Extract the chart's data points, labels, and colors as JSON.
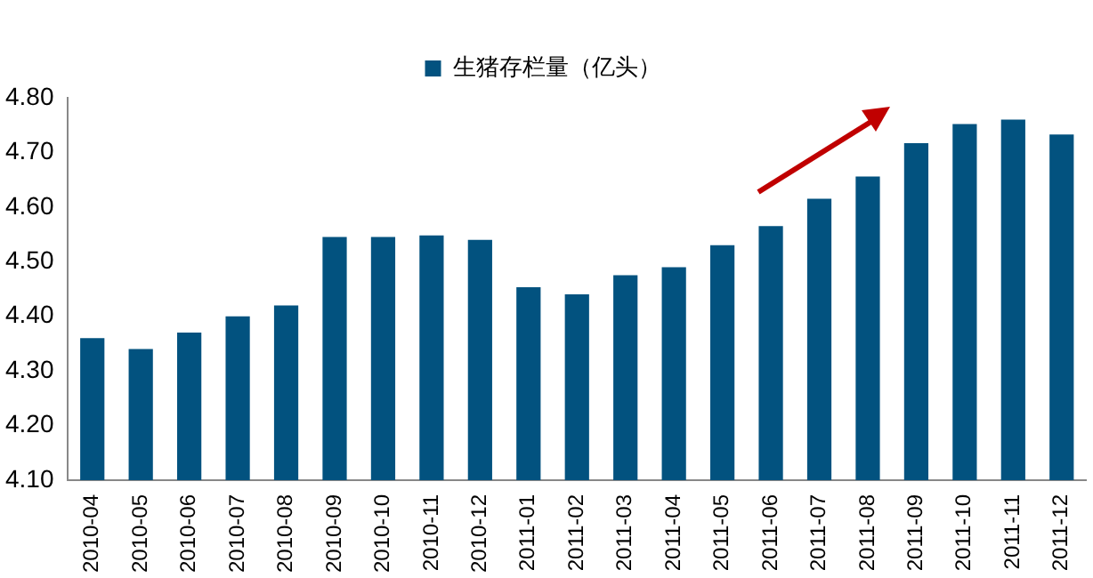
{
  "chart_data": {
    "type": "bar",
    "categories": [
      "2010-04",
      "2010-05",
      "2010-06",
      "2010-07",
      "2010-08",
      "2010-09",
      "2010-10",
      "2010-11",
      "2010-12",
      "2011-01",
      "2011-02",
      "2011-03",
      "2011-04",
      "2011-05",
      "2011-06",
      "2011-07",
      "2011-08",
      "2011-09",
      "2011-10",
      "2011-11",
      "2011-12"
    ],
    "series": [
      {
        "name": "生猪存栏量（亿头）",
        "color": "#02527f",
        "values": [
          4.36,
          4.34,
          4.37,
          4.4,
          4.42,
          4.545,
          4.545,
          4.548,
          4.54,
          4.453,
          4.44,
          4.475,
          4.49,
          4.53,
          4.565,
          4.615,
          4.656,
          4.717,
          4.752,
          4.76,
          4.733
        ]
      }
    ],
    "ylim": [
      4.1,
      4.8
    ],
    "yticks": [
      {
        "value": 4.1,
        "label": "4.10"
      },
      {
        "value": 4.2,
        "label": "4.20"
      },
      {
        "value": 4.3,
        "label": "4.30"
      },
      {
        "value": 4.4,
        "label": "4.40"
      },
      {
        "value": 4.5,
        "label": "4.50"
      },
      {
        "value": 4.6,
        "label": "4.60"
      },
      {
        "value": 4.7,
        "label": "4.70"
      },
      {
        "value": 4.8,
        "label": "4.80"
      }
    ],
    "grid": false,
    "legend": "top"
  }
}
